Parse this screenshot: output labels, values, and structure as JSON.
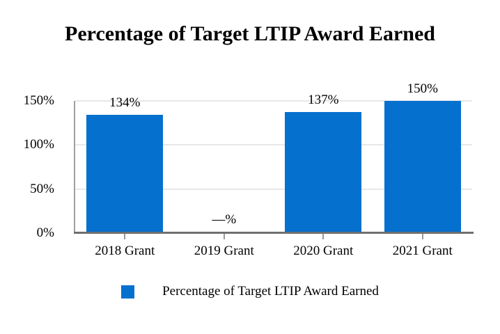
{
  "page": {
    "background": "#FFFFFF"
  },
  "chart_data": {
    "type": "bar",
    "title": "Percentage of Target LTIP Award Earned",
    "xlabel": "",
    "ylabel": "",
    "categories": [
      "2018 Grant",
      "2019 Grant",
      "2020 Grant",
      "2021 Grant"
    ],
    "series": [
      {
        "name": "Percentage of Target LTIP Award Earned",
        "values": [
          134,
          null,
          137,
          150
        ],
        "data_labels": [
          "134%",
          "—%",
          "137%",
          "150%"
        ],
        "color": "#0670CE"
      }
    ],
    "ylim": [
      0,
      150
    ],
    "yticks": [
      {
        "value": 0,
        "label": "0%"
      },
      {
        "value": 50,
        "label": "50%"
      },
      {
        "value": 100,
        "label": "100%"
      },
      {
        "value": 150,
        "label": "150%"
      }
    ],
    "grid": true,
    "legend_position": "bottom"
  },
  "colors": {
    "bar": "#0670CE",
    "grid_line": "#E8E8E8",
    "y_axis_line": "#A0A0A0",
    "x_axis_line": "#6F6F6F",
    "tick_mark": "#999999",
    "text": "#000000",
    "background": "#FFFFFF"
  }
}
